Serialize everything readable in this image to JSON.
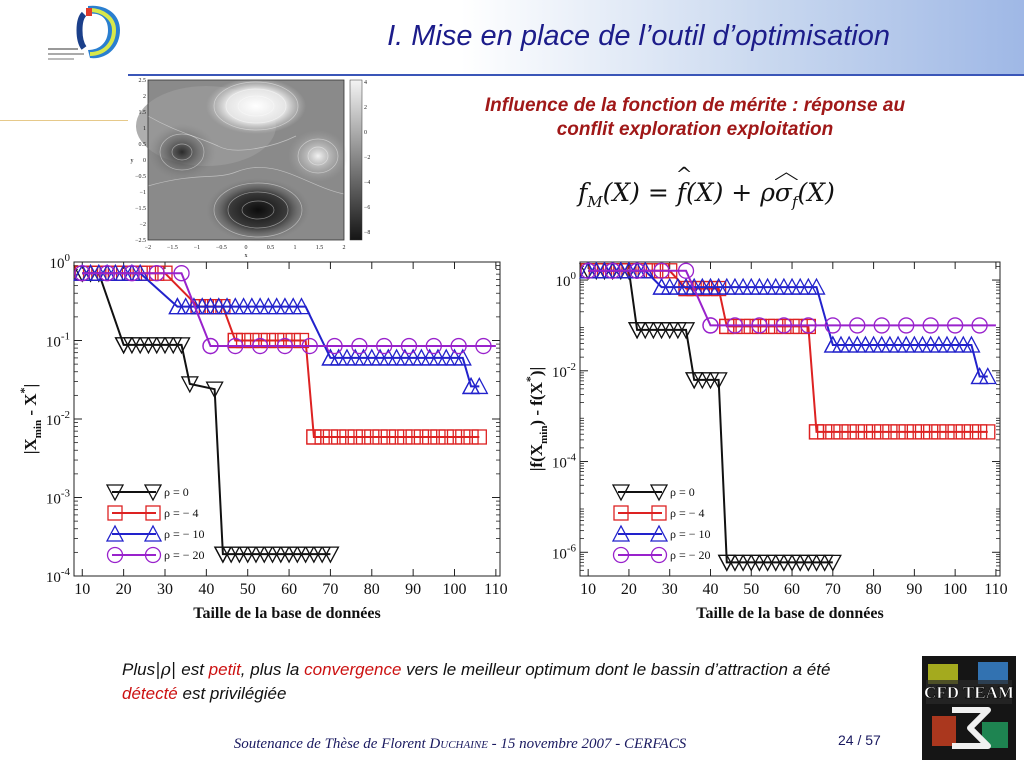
{
  "slide": {
    "title": "I.  Mise en place de l’outil d’optimisation",
    "merit_heading": "Influence de la fonction de mérite : réponse au conflit exploration exploitation",
    "formula": {
      "f": "f",
      "sub": "M",
      "rest1": "(X) = ",
      "fhat": "f",
      "rest2": "(X) + ρ",
      "sigma": "σ",
      "sigma_sub": "f",
      "rest3": "(X)"
    },
    "conclusion": {
      "p1": "Plus",
      "abs_rho": "|ρ|",
      "p2": " est ",
      "petit": "petit",
      "p3": ", plus la ",
      "convergence": "convergence",
      "p4": " vers le meilleur optimum dont le bassin d’attraction a été ",
      "detecte": "détecté",
      "p5": " est privilégiée"
    },
    "footer": {
      "a": "Soutenance de Thèse de Florent D",
      "b": "UCHAINE",
      "c": " - 15 novembre 2007 - CERFACS"
    },
    "page": {
      "current": "24",
      "sep": " / ",
      "total": "57"
    },
    "logo_text": "CFD TEAM"
  },
  "contour_plot": {
    "x_ticks": [
      "−2",
      "−1.5",
      "−1",
      "−0.5",
      "0",
      "0.5",
      "1",
      "1.5",
      "2"
    ],
    "y_ticks": [
      "2.5",
      "2",
      "1.5",
      "1",
      "0.5",
      "0",
      "−0.5",
      "−1",
      "−1.5",
      "−2",
      "−2.5"
    ],
    "xlabel": "x",
    "ylabel": "y",
    "colorbar_ticks": [
      "4",
      "2",
      "0",
      "−2",
      "−4",
      "−6",
      "−8"
    ],
    "colors": {
      "light": "#f4f4f4",
      "dark": "#151515"
    }
  },
  "chart_data": [
    {
      "type": "line",
      "xlabel": "Taille de la base de données",
      "ylabel": "|X",
      "ylabel_sub": "min",
      "ylabel_mid": " - X",
      "ylabel_sup": "*",
      "ylabel_end": "|",
      "y_scale": "log",
      "xlim": [
        8,
        111
      ],
      "ylim": [
        0.0001,
        1
      ],
      "x_ticks": [
        10,
        20,
        30,
        40,
        50,
        60,
        70,
        80,
        90,
        100,
        110
      ],
      "y_ticks": [
        {
          "base": "10",
          "exp": "0",
          "v": 1
        },
        {
          "base": "10",
          "exp": "-1",
          "v": 0.1
        },
        {
          "base": "10",
          "exp": "-2",
          "v": 0.01
        },
        {
          "base": "10",
          "exp": "-3",
          "v": 0.001
        },
        {
          "base": "10",
          "exp": "-4",
          "v": 0.0001
        }
      ],
      "legend_position": "bottom-left",
      "series": [
        {
          "name": "ρ = 0",
          "color": "#111111",
          "marker": "triangle-down",
          "step": 2,
          "points": [
            [
              10,
              0.72
            ],
            [
              14,
              0.72
            ],
            [
              20,
              0.088
            ],
            [
              34,
              0.088
            ],
            [
              36,
              0.028
            ],
            [
              42,
              0.024
            ],
            [
              44,
              0.00019
            ],
            [
              70,
              0.00019
            ]
          ]
        },
        {
          "name": "ρ = − 4",
          "color": "#dd2222",
          "marker": "square",
          "step": 2,
          "points": [
            [
              10,
              0.72
            ],
            [
              30,
              0.72
            ],
            [
              38,
              0.27
            ],
            [
              44,
              0.27
            ],
            [
              47,
              0.1
            ],
            [
              64,
              0.1
            ],
            [
              66,
              0.0059
            ],
            [
              106,
              0.0059
            ]
          ]
        },
        {
          "name": "ρ = − 10",
          "color": "#2222cc",
          "marker": "triangle-up",
          "step": 2,
          "points": [
            [
              10,
              0.72
            ],
            [
              24,
              0.72
            ],
            [
              33,
              0.27
            ],
            [
              64,
              0.27
            ],
            [
              70,
              0.06
            ],
            [
              102,
              0.06
            ],
            [
              104,
              0.026
            ],
            [
              106,
              0.026
            ]
          ]
        },
        {
          "name": "ρ = − 20",
          "color": "#9922cc",
          "marker": "circle",
          "step": 6,
          "points": [
            [
              10,
              0.72
            ],
            [
              34,
              0.72
            ],
            [
              41,
              0.085
            ],
            [
              110,
              0.085
            ]
          ]
        }
      ]
    },
    {
      "type": "line",
      "xlabel": "Taille de la base de données",
      "ylabel": "|f(X",
      "ylabel_sub": "min",
      "ylabel_mid": ") - f(X",
      "ylabel_sup": "*",
      "ylabel_end": ")|",
      "y_scale": "log",
      "xlim": [
        8,
        111
      ],
      "ylim": [
        3e-07,
        2.5
      ],
      "x_ticks": [
        10,
        20,
        30,
        40,
        50,
        60,
        70,
        80,
        90,
        100,
        110
      ],
      "y_ticks": [
        {
          "base": "10",
          "exp": "0",
          "v": 1
        },
        {
          "base": "10",
          "exp": "-2",
          "v": 0.01
        },
        {
          "base": "10",
          "exp": "-4",
          "v": 0.0001
        },
        {
          "base": "10",
          "exp": "-6",
          "v": 1e-06
        }
      ],
      "legend_position": "bottom-left",
      "series": [
        {
          "name": "ρ = 0",
          "color": "#111111",
          "marker": "triangle-down",
          "step": 2,
          "points": [
            [
              10,
              1.6
            ],
            [
              20,
              1.6
            ],
            [
              22,
              0.08
            ],
            [
              34,
              0.08
            ],
            [
              36,
              0.0063
            ],
            [
              42,
              0.0063
            ],
            [
              44,
              6e-07
            ],
            [
              70,
              6e-07
            ]
          ]
        },
        {
          "name": "ρ = − 4",
          "color": "#dd2222",
          "marker": "square",
          "step": 2,
          "points": [
            [
              10,
              1.6
            ],
            [
              30,
              1.6
            ],
            [
              34,
              0.65
            ],
            [
              42,
              0.65
            ],
            [
              44,
              0.095
            ],
            [
              64,
              0.095
            ],
            [
              66,
              0.00045
            ],
            [
              108,
              0.00045
            ]
          ]
        },
        {
          "name": "ρ = − 10",
          "color": "#2222cc",
          "marker": "triangle-up",
          "step": 2,
          "points": [
            [
              10,
              1.6
            ],
            [
              24,
              1.6
            ],
            [
              28,
              0.7
            ],
            [
              66,
              0.7
            ],
            [
              70,
              0.037
            ],
            [
              104,
              0.037
            ],
            [
              106,
              0.0075
            ],
            [
              108,
              0.0075
            ]
          ]
        },
        {
          "name": "ρ = − 20",
          "color": "#9922cc",
          "marker": "circle",
          "step": 6,
          "points": [
            [
              10,
              1.6
            ],
            [
              34,
              1.6
            ],
            [
              40,
              0.1
            ],
            [
              110,
              0.1
            ]
          ]
        }
      ]
    }
  ]
}
